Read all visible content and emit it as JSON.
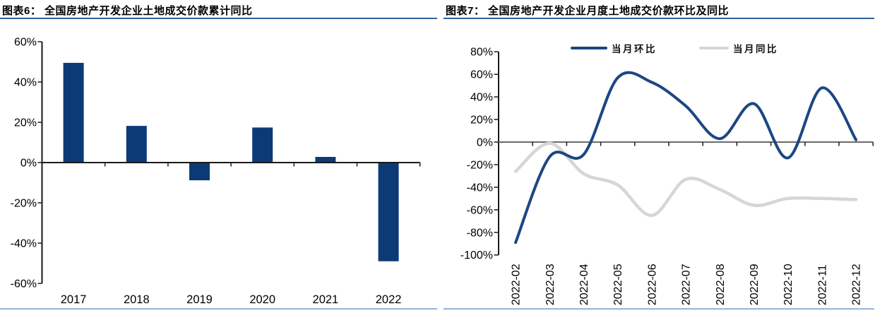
{
  "page": {
    "background": "#ffffff",
    "accent_title_rule": "#36619e",
    "accent_bottom_rule": "#95b3d7"
  },
  "chart_data": [
    {
      "type": "bar",
      "title": "图表6：  全国房地产开发企业土地成交价款累计同比",
      "categories": [
        "2017",
        "2018",
        "2019",
        "2020",
        "2021",
        "2022"
      ],
      "values": [
        49.5,
        18.2,
        -8.8,
        17.4,
        2.8,
        -49.0
      ],
      "unit": "%",
      "ylim": [
        -60,
        60
      ],
      "ytick_step": 20,
      "ytick_labels": [
        "60%",
        "40%",
        "20%",
        "0%",
        "-20%",
        "-40%",
        "-60%"
      ],
      "bar_color": "#0c3a76",
      "axis_color": "#1a1a1a",
      "grid": "off",
      "legend_position": "none"
    },
    {
      "type": "line",
      "title": "图表7：  全国房地产开发企业月度土地成交价款环比及同比",
      "x": [
        "2022-02",
        "2022-03",
        "2022-04",
        "2022-05",
        "2022-06",
        "2022-07",
        "2022-08",
        "2022-09",
        "2022-10",
        "2022-11",
        "2022-12"
      ],
      "series": [
        {
          "name": "当月环比",
          "color": "#1b4782",
          "values": [
            -89,
            -13,
            -11,
            57,
            53,
            32,
            3,
            34,
            -14,
            48,
            2
          ]
        },
        {
          "name": "当月同比",
          "color": "#d6d6d6",
          "values": [
            -26,
            -1,
            -28,
            -38,
            -65,
            -33,
            -42,
            -56,
            -50,
            -50,
            -51
          ]
        }
      ],
      "unit": "%",
      "ylim": [
        -100,
        80
      ],
      "ytick_step": 20,
      "ytick_labels": [
        "80%",
        "60%",
        "40%",
        "20%",
        "0%",
        "-20%",
        "-40%",
        "-60%",
        "-80%",
        "-100%"
      ],
      "axis_color": "#1a1a1a",
      "zero_line_color": "#6b6b6b",
      "grid": "off",
      "legend_position": "top"
    }
  ]
}
